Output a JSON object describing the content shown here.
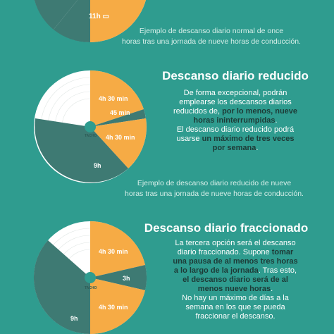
{
  "colors": {
    "background": "#2f9c8f",
    "rest": "#3e7a73",
    "driving": "#f6ab45",
    "dial": "#ffffff",
    "emphasis": "#1d3a36"
  },
  "section1": {
    "label_rest": "11h",
    "rest_icon": "bed-icon",
    "caption_line1": "Ejemplo de descanso diario normal de once",
    "caption_line2": "horas tras una jornada de nueve horas de conducción."
  },
  "section2": {
    "title": "Descanso diario reducido",
    "p1_a": "De forma excepcional, podrán",
    "p1_b": "emplearse los descansos diarios",
    "p1_c": "reducidos de, ",
    "p1_bold1": "por lo menos, nueve",
    "p1_bold2": "horas ininterrumpidas",
    "p1_end": ".",
    "p2_a": "El descanso diario reducido podrá",
    "p2_b": "usarse ",
    "p2_bold1": "un máximo de tres veces",
    "p2_bold2": "por semana",
    "p2_end": ".",
    "labels": [
      "4h 30 min",
      "45 min",
      "4h 30 min",
      "9h"
    ],
    "tacho": "TACHO",
    "caption_line1": "Ejemplo de descanso diario reducido de nueve",
    "caption_line2": "horas tras una jornada de nueve horas de conducción."
  },
  "section3": {
    "title": "Descanso diario fraccionado",
    "line1": "La tercera opción será el descanso",
    "line2_a": "diario fraccionado. Supone ",
    "line2_b": "tomar",
    "line3": "una pausa de al menos tres horas",
    "line4_a": "a lo largo de la jornada",
    "line4_b": ". Tras esto,",
    "line5": "el descanso diario será de al",
    "line6_a": "menos nueve horas",
    "line6_b": ".",
    "line7": "No hay un máximo de días a la",
    "line8": "semana en los que se pueda",
    "line9": "fraccionar el descanso.",
    "labels": [
      "4h 30 min",
      "3h",
      "4h 30 min",
      "9h"
    ],
    "tacho": "TACHO"
  }
}
